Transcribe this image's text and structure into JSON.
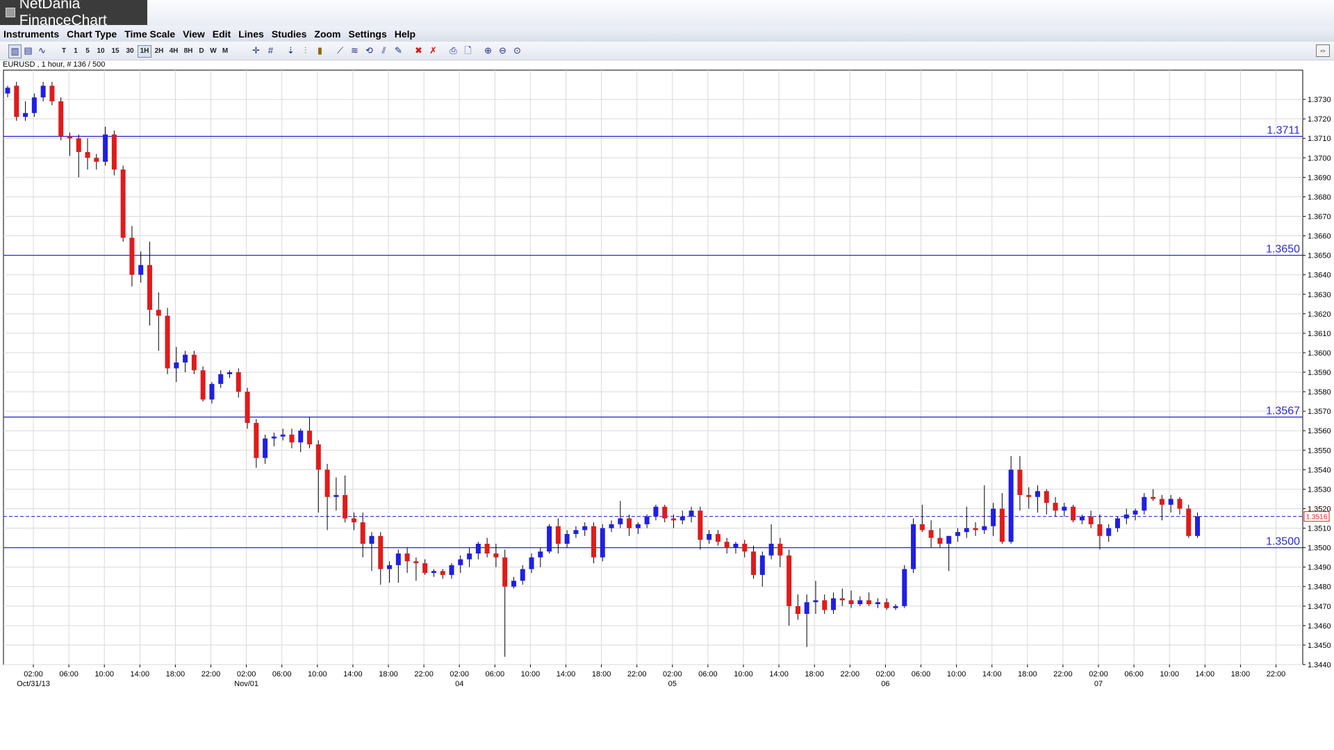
{
  "app": {
    "title": "NetDania FinanceChart"
  },
  "menu": [
    "Instruments",
    "Chart Type",
    "Time Scale",
    "View",
    "Edit",
    "Lines",
    "Studies",
    "Zoom",
    "Settings",
    "Help"
  ],
  "toolbar": {
    "timeframes": [
      "T",
      "1",
      "5",
      "10",
      "15",
      "30",
      "1H",
      "2H",
      "4H",
      "8H",
      "D",
      "W",
      "M"
    ],
    "selected": "1H",
    "icons": [
      "candlestick-icon",
      "bar-chart-icon",
      "line-chart-icon",
      "crosshair-icon",
      "grid-icon",
      "arrow-down-icon",
      "volume-icon",
      "bars-icon",
      "trend-line-icon",
      "fib-icon",
      "cycle-icon",
      "channel-icon",
      "edit-line-icon",
      "delete-icon",
      "delete-all-icon",
      "print-icon",
      "print-preview-icon",
      "zoom-in-icon",
      "zoom-out-icon",
      "zoom-reset-icon"
    ]
  },
  "chart_label": "EURUSD , 1 hour, # 136 / 500",
  "colors": {
    "up": "#1f1fe6",
    "down": "#e01b1b",
    "hline": "#2b2bd6",
    "grid": "#d9d9d9"
  },
  "chart_data": {
    "type": "candlestick",
    "symbol": "EURUSD",
    "interval": "1 hour",
    "ylim": [
      1.344,
      1.3745
    ],
    "y_ticks": [
      "1.3440",
      "1.3450",
      "1.3460",
      "1.3470",
      "1.3480",
      "1.3490",
      "1.3500",
      "1.3510",
      "1.3520",
      "1.3530",
      "1.3540",
      "1.3550",
      "1.3560",
      "1.3570",
      "1.3580",
      "1.3590",
      "1.3600",
      "1.3610",
      "1.3620",
      "1.3630",
      "1.3640",
      "1.3650",
      "1.3660",
      "1.3670",
      "1.3680",
      "1.3690",
      "1.3700",
      "1.3710",
      "1.3720",
      "1.3730"
    ],
    "x_ticks": [
      "02:00",
      "06:00",
      "10:00",
      "14:00",
      "18:00",
      "22:00",
      "02:00",
      "06:00",
      "10:00",
      "14:00",
      "18:00",
      "22:00",
      "02:00",
      "06:00",
      "10:00",
      "14:00",
      "18:00",
      "22:00",
      "02:00",
      "06:00",
      "10:00",
      "14:00",
      "18:00",
      "22:00",
      "02:00",
      "06:00",
      "10:00",
      "14:00",
      "18:00",
      "22:00",
      "02:00",
      "06:00",
      "10:00",
      "14:00",
      "18:00",
      "22:00"
    ],
    "date_labels": [
      {
        "tick": 0,
        "text": "Oct/31/13"
      },
      {
        "tick": 6,
        "text": "Nov/01"
      },
      {
        "tick": 12,
        "text": "04"
      },
      {
        "tick": 18,
        "text": "05"
      },
      {
        "tick": 24,
        "text": "06"
      },
      {
        "tick": 30,
        "text": "07"
      }
    ],
    "hlines": [
      {
        "value": 1.3711,
        "label": "1.3711"
      },
      {
        "value": 1.365,
        "label": "1.3650"
      },
      {
        "value": 1.3567,
        "label": "1.3567"
      },
      {
        "value": 1.35,
        "label": "1.3500"
      }
    ],
    "current": {
      "value": 1.3516,
      "label": "1.3516"
    },
    "candles": [
      [
        1.3733,
        1.3737,
        1.3731,
        1.3736
      ],
      [
        1.3737,
        1.3739,
        1.3719,
        1.3721
      ],
      [
        1.3721,
        1.3729,
        1.3719,
        1.3723
      ],
      [
        1.3723,
        1.3733,
        1.3721,
        1.3731
      ],
      [
        1.3731,
        1.3739,
        1.3729,
        1.3737
      ],
      [
        1.3737,
        1.3739,
        1.3727,
        1.3729
      ],
      [
        1.3729,
        1.3731,
        1.3709,
        1.3711
      ],
      [
        1.3711,
        1.3713,
        1.3701,
        1.371
      ],
      [
        1.371,
        1.3712,
        1.369,
        1.3703
      ],
      [
        1.3703,
        1.371,
        1.3694,
        1.37
      ],
      [
        1.37,
        1.3702,
        1.3694,
        1.3698
      ],
      [
        1.3698,
        1.3716,
        1.3696,
        1.3712
      ],
      [
        1.3712,
        1.3714,
        1.3691,
        1.3694
      ],
      [
        1.3694,
        1.3696,
        1.3657,
        1.3659
      ],
      [
        1.3659,
        1.3665,
        1.3634,
        1.364
      ],
      [
        1.364,
        1.3652,
        1.3636,
        1.3645
      ],
      [
        1.3645,
        1.3657,
        1.3614,
        1.3622
      ],
      [
        1.3622,
        1.3631,
        1.3601,
        1.3619
      ],
      [
        1.3619,
        1.3623,
        1.3589,
        1.3592
      ],
      [
        1.3592,
        1.3603,
        1.3585,
        1.3595
      ],
      [
        1.3595,
        1.3601,
        1.359,
        1.3599
      ],
      [
        1.3599,
        1.3601,
        1.3589,
        1.3591
      ],
      [
        1.3591,
        1.3593,
        1.3575,
        1.3576
      ],
      [
        1.3576,
        1.3585,
        1.3574,
        1.3584
      ],
      [
        1.3584,
        1.3591,
        1.3582,
        1.3589
      ],
      [
        1.3589,
        1.3591,
        1.3587,
        1.359
      ],
      [
        1.359,
        1.3592,
        1.3577,
        1.358
      ],
      [
        1.358,
        1.3582,
        1.3561,
        1.3564
      ],
      [
        1.3564,
        1.3566,
        1.3541,
        1.3546
      ],
      [
        1.3546,
        1.3558,
        1.3543,
        1.3556
      ],
      [
        1.3556,
        1.3559,
        1.3552,
        1.3557
      ],
      [
        1.3557,
        1.3561,
        1.3555,
        1.3558
      ],
      [
        1.3558,
        1.3561,
        1.3551,
        1.3554
      ],
      [
        1.3554,
        1.3561,
        1.3549,
        1.356
      ],
      [
        1.356,
        1.3567,
        1.3551,
        1.3553
      ],
      [
        1.3553,
        1.3555,
        1.3518,
        1.354
      ],
      [
        1.354,
        1.3543,
        1.3509,
        1.3526
      ],
      [
        1.3526,
        1.3536,
        1.3519,
        1.3527
      ],
      [
        1.3527,
        1.3537,
        1.3513,
        1.3515
      ],
      [
        1.3515,
        1.3518,
        1.3509,
        1.3513
      ],
      [
        1.3513,
        1.3518,
        1.3495,
        1.3502
      ],
      [
        1.3502,
        1.3508,
        1.3488,
        1.3506
      ],
      [
        1.3506,
        1.3508,
        1.3481,
        1.3489
      ],
      [
        1.3489,
        1.3493,
        1.3482,
        1.3491
      ],
      [
        1.3491,
        1.3499,
        1.3482,
        1.3497
      ],
      [
        1.3497,
        1.35,
        1.3487,
        1.3493
      ],
      [
        1.3493,
        1.3495,
        1.3483,
        1.3492
      ],
      [
        1.3492,
        1.3494,
        1.3486,
        1.3487
      ],
      [
        1.3487,
        1.3489,
        1.3485,
        1.3488
      ],
      [
        1.3488,
        1.3489,
        1.3484,
        1.3486
      ],
      [
        1.3486,
        1.3492,
        1.3484,
        1.3491
      ],
      [
        1.3491,
        1.3496,
        1.3487,
        1.3494
      ],
      [
        1.3494,
        1.35,
        1.349,
        1.3497
      ],
      [
        1.3497,
        1.3503,
        1.3494,
        1.3502
      ],
      [
        1.3502,
        1.3505,
        1.3495,
        1.3497
      ],
      [
        1.3497,
        1.3502,
        1.349,
        1.3495
      ],
      [
        1.3495,
        1.3499,
        1.3444,
        1.348
      ],
      [
        1.348,
        1.3485,
        1.3479,
        1.3483
      ],
      [
        1.3483,
        1.3491,
        1.3481,
        1.3489
      ],
      [
        1.3489,
        1.3497,
        1.3487,
        1.3495
      ],
      [
        1.3495,
        1.35,
        1.349,
        1.3498
      ],
      [
        1.3498,
        1.3512,
        1.3497,
        1.3511
      ],
      [
        1.3511,
        1.3515,
        1.3497,
        1.3502
      ],
      [
        1.3502,
        1.3509,
        1.35,
        1.3507
      ],
      [
        1.3507,
        1.3511,
        1.3505,
        1.3509
      ],
      [
        1.3509,
        1.3513,
        1.3506,
        1.3511
      ],
      [
        1.3511,
        1.3513,
        1.3492,
        1.3495
      ],
      [
        1.3495,
        1.3512,
        1.3493,
        1.351
      ],
      [
        1.351,
        1.3514,
        1.3508,
        1.3512
      ],
      [
        1.3512,
        1.3524,
        1.351,
        1.3515
      ],
      [
        1.3515,
        1.3517,
        1.3506,
        1.351
      ],
      [
        1.351,
        1.3513,
        1.3507,
        1.3512
      ],
      [
        1.3512,
        1.3517,
        1.351,
        1.3516
      ],
      [
        1.3516,
        1.3522,
        1.3514,
        1.3521
      ],
      [
        1.3521,
        1.3522,
        1.3513,
        1.3515
      ],
      [
        1.3515,
        1.3517,
        1.351,
        1.3514
      ],
      [
        1.3514,
        1.3519,
        1.3512,
        1.3516
      ],
      [
        1.3516,
        1.3521,
        1.3513,
        1.3519
      ],
      [
        1.3519,
        1.3521,
        1.3499,
        1.3504
      ],
      [
        1.3504,
        1.3509,
        1.3502,
        1.3507
      ],
      [
        1.3507,
        1.3509,
        1.3501,
        1.3503
      ],
      [
        1.3503,
        1.3505,
        1.3497,
        1.35
      ],
      [
        1.35,
        1.3503,
        1.3497,
        1.3502
      ],
      [
        1.3502,
        1.3504,
        1.3495,
        1.3498
      ],
      [
        1.3498,
        1.3501,
        1.3484,
        1.3486
      ],
      [
        1.3486,
        1.3498,
        1.348,
        1.3496
      ],
      [
        1.3496,
        1.3512,
        1.3494,
        1.3502
      ],
      [
        1.3502,
        1.3505,
        1.349,
        1.3496
      ],
      [
        1.3496,
        1.3499,
        1.346,
        1.347
      ],
      [
        1.347,
        1.3476,
        1.3463,
        1.3466
      ],
      [
        1.3466,
        1.3476,
        1.3449,
        1.3472
      ],
      [
        1.3472,
        1.3483,
        1.3466,
        1.3473
      ],
      [
        1.3473,
        1.3476,
        1.3466,
        1.3468
      ],
      [
        1.3468,
        1.3477,
        1.3466,
        1.3474
      ],
      [
        1.3474,
        1.3479,
        1.347,
        1.3473
      ],
      [
        1.3473,
        1.3478,
        1.3469,
        1.3471
      ],
      [
        1.3471,
        1.3475,
        1.347,
        1.3473
      ],
      [
        1.3473,
        1.3477,
        1.347,
        1.3471
      ],
      [
        1.3471,
        1.3474,
        1.3469,
        1.3472
      ],
      [
        1.3472,
        1.3474,
        1.3468,
        1.3469
      ],
      [
        1.3469,
        1.3471,
        1.3468,
        1.347
      ],
      [
        1.347,
        1.3491,
        1.3469,
        1.3489
      ],
      [
        1.3489,
        1.3515,
        1.3487,
        1.3512
      ],
      [
        1.3512,
        1.3522,
        1.3508,
        1.3509
      ],
      [
        1.3509,
        1.3514,
        1.35,
        1.3505
      ],
      [
        1.3505,
        1.351,
        1.35,
        1.3502
      ],
      [
        1.3502,
        1.3506,
        1.3488,
        1.3506
      ],
      [
        1.3506,
        1.351,
        1.3503,
        1.3508
      ],
      [
        1.3508,
        1.3521,
        1.3505,
        1.351
      ],
      [
        1.351,
        1.3513,
        1.3506,
        1.3509
      ],
      [
        1.3509,
        1.3532,
        1.3507,
        1.3511
      ],
      [
        1.3511,
        1.3523,
        1.3506,
        1.352
      ],
      [
        1.352,
        1.3528,
        1.3502,
        1.3503
      ],
      [
        1.3503,
        1.3547,
        1.3502,
        1.354
      ],
      [
        1.354,
        1.3547,
        1.3519,
        1.3527
      ],
      [
        1.3527,
        1.3531,
        1.352,
        1.3526
      ],
      [
        1.3526,
        1.3532,
        1.3518,
        1.3529
      ],
      [
        1.3529,
        1.353,
        1.3517,
        1.3523
      ],
      [
        1.3523,
        1.3526,
        1.3516,
        1.3519
      ],
      [
        1.3519,
        1.3523,
        1.3516,
        1.3521
      ],
      [
        1.3521,
        1.3522,
        1.3513,
        1.3514
      ],
      [
        1.3514,
        1.3517,
        1.3512,
        1.3516
      ],
      [
        1.3516,
        1.3519,
        1.351,
        1.3512
      ],
      [
        1.3512,
        1.3517,
        1.3499,
        1.3506
      ],
      [
        1.3506,
        1.3512,
        1.3503,
        1.351
      ],
      [
        1.351,
        1.3516,
        1.3508,
        1.3515
      ],
      [
        1.3515,
        1.352,
        1.3512,
        1.3517
      ],
      [
        1.3517,
        1.352,
        1.3514,
        1.3519
      ],
      [
        1.3519,
        1.3528,
        1.3517,
        1.3526
      ],
      [
        1.3526,
        1.353,
        1.3524,
        1.3525
      ],
      [
        1.3525,
        1.3527,
        1.3514,
        1.3522
      ],
      [
        1.3522,
        1.3527,
        1.3518,
        1.3525
      ],
      [
        1.3525,
        1.3526,
        1.3517,
        1.352
      ],
      [
        1.352,
        1.3522,
        1.3505,
        1.3506
      ],
      [
        1.3506,
        1.3518,
        1.3505,
        1.3516
      ]
    ]
  }
}
